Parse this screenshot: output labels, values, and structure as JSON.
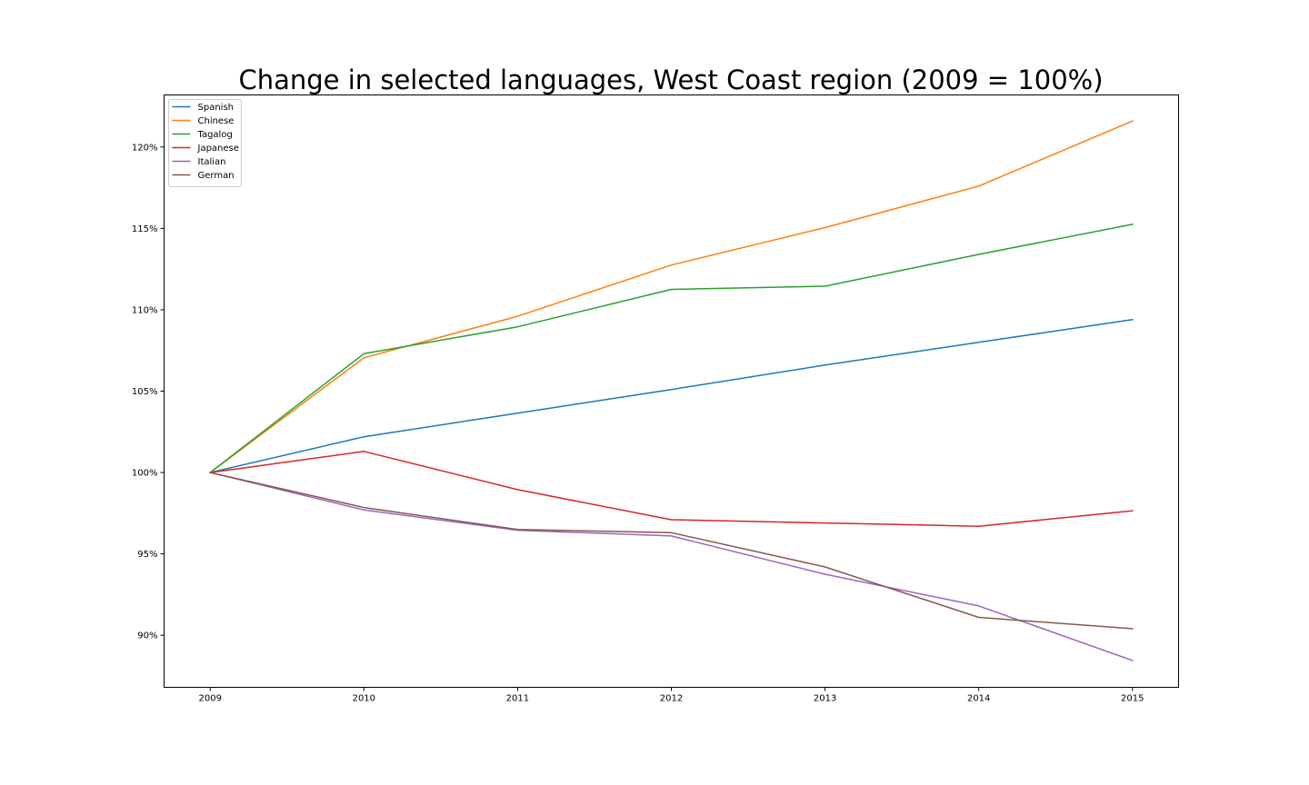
{
  "chart_data": {
    "type": "line",
    "title": "Change in selected languages, West Coast region (2009 = 100%)",
    "xlabel": "",
    "ylabel": "",
    "x": [
      "2009",
      "2010",
      "2011",
      "2012",
      "2013",
      "2014",
      "2015"
    ],
    "xlim": [
      -0.3,
      6.3
    ],
    "ylim": [
      86.8,
      123.2
    ],
    "yticks": [
      90,
      95,
      100,
      105,
      110,
      115,
      120
    ],
    "ytick_labels": [
      "90%",
      "95%",
      "100%",
      "105%",
      "110%",
      "115%",
      "120%"
    ],
    "grid": false,
    "legend_position": "upper left",
    "series": [
      {
        "name": "Spanish",
        "color": "#1f77b4",
        "values": [
          100.0,
          102.2,
          103.65,
          105.1,
          106.6,
          108.0,
          109.4
        ]
      },
      {
        "name": "Chinese",
        "color": "#ff7f0e",
        "values": [
          100.0,
          107.05,
          109.6,
          112.75,
          115.05,
          117.6,
          121.6
        ]
      },
      {
        "name": "Tagalog",
        "color": "#2ca02c",
        "values": [
          100.0,
          107.3,
          108.95,
          111.25,
          111.45,
          113.4,
          115.25
        ]
      },
      {
        "name": "Japanese",
        "color": "#d62728",
        "values": [
          100.0,
          101.3,
          98.95,
          97.1,
          96.9,
          96.7,
          97.65
        ]
      },
      {
        "name": "Italian",
        "color": "#9467bd",
        "values": [
          100.0,
          97.7,
          96.45,
          96.1,
          93.75,
          91.8,
          88.45
        ]
      },
      {
        "name": "German",
        "color": "#8c564b",
        "values": [
          100.0,
          97.85,
          96.5,
          96.3,
          94.2,
          91.1,
          90.4
        ]
      }
    ]
  }
}
